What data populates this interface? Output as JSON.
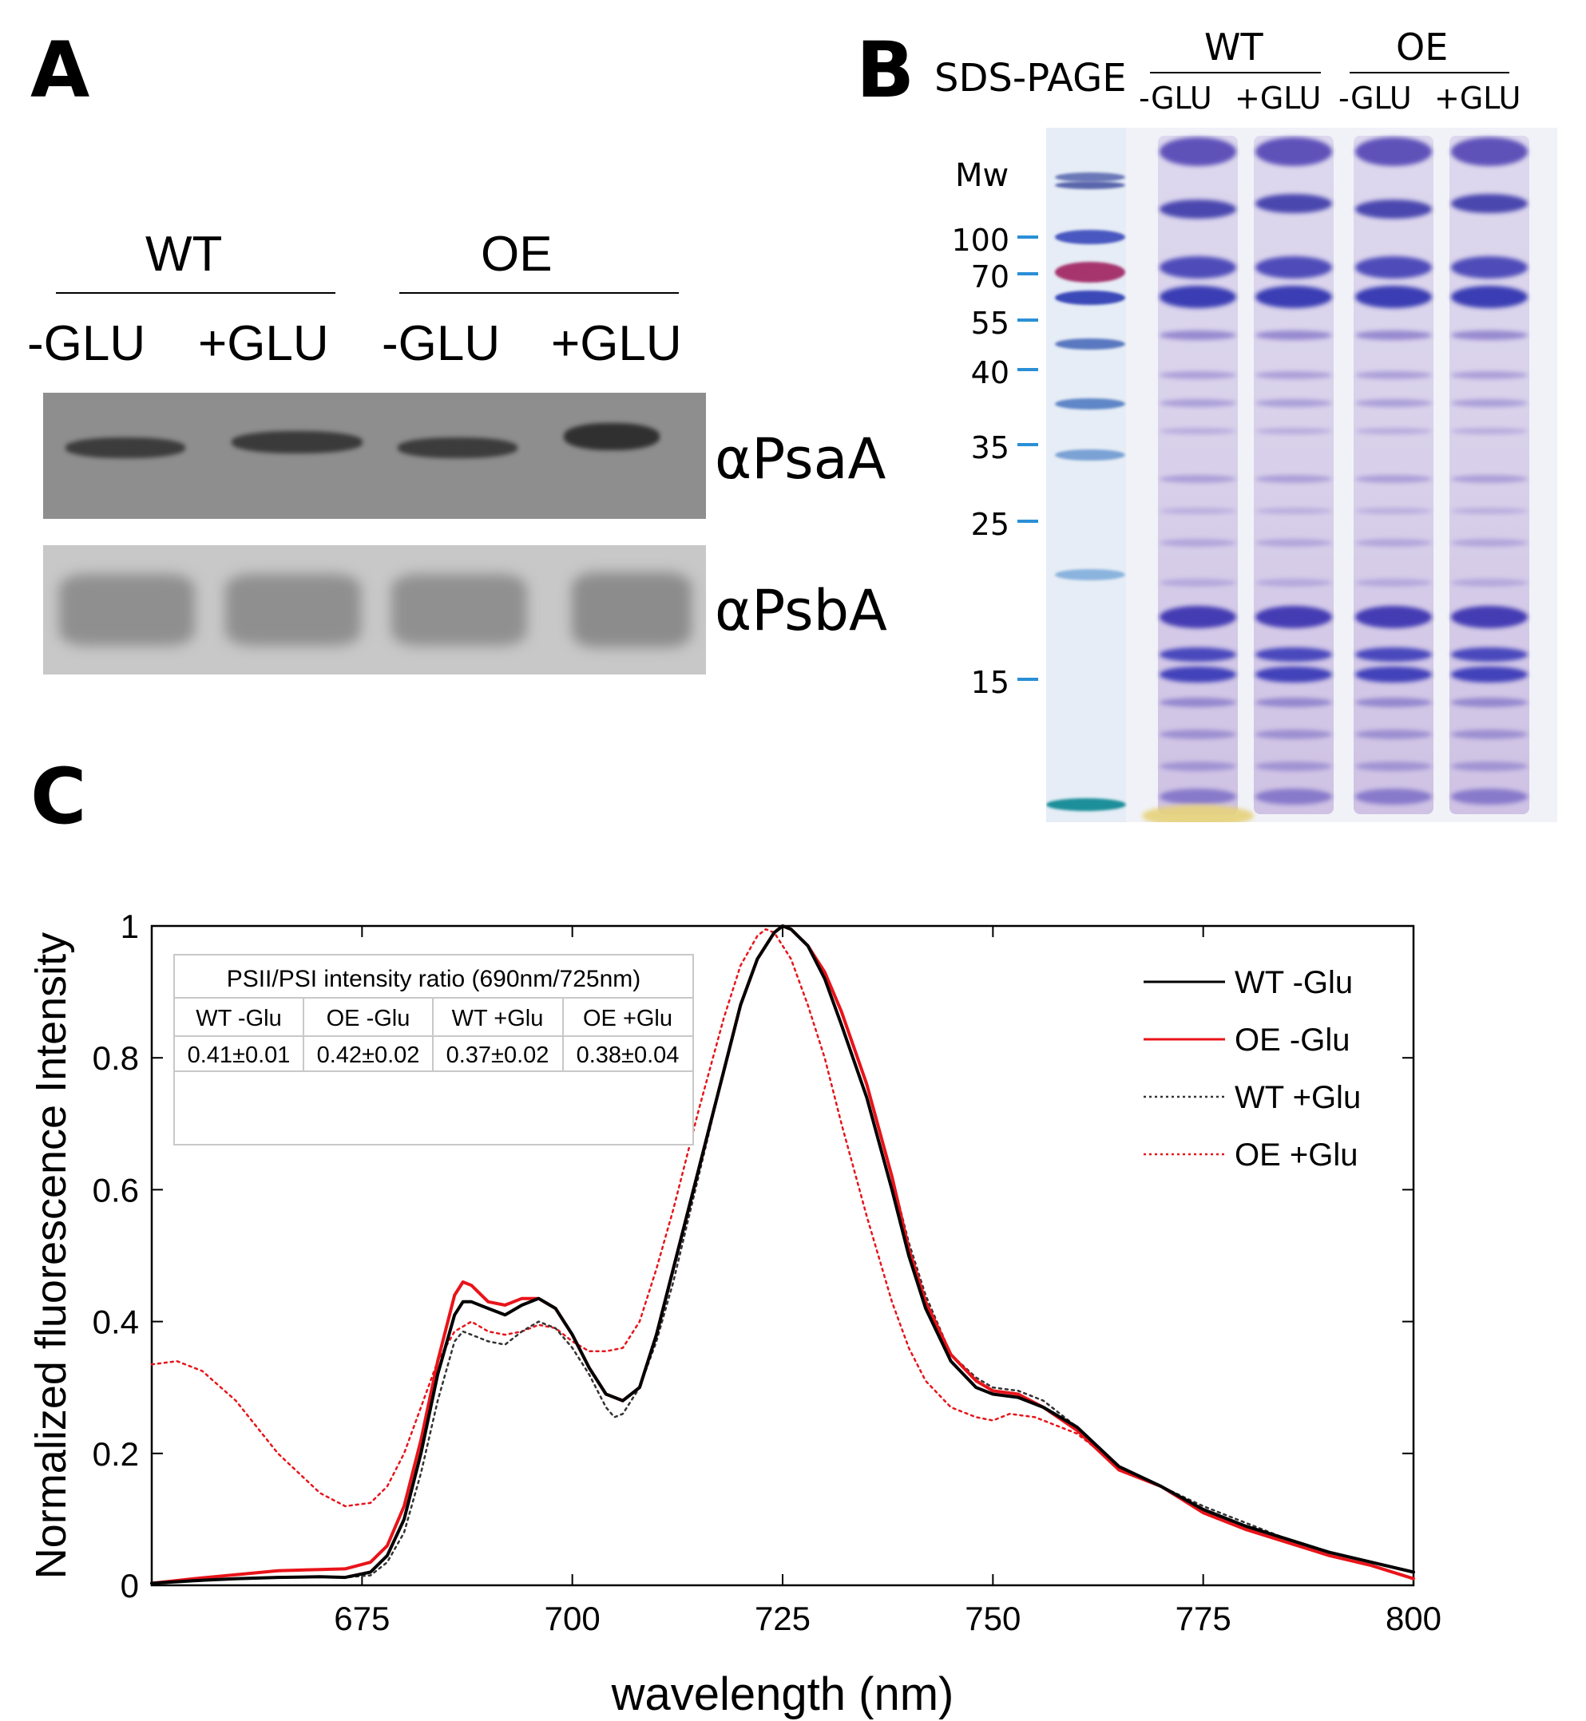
{
  "panel_a": {
    "label": "A",
    "groups": [
      {
        "name": "WT"
      },
      {
        "name": "OE"
      }
    ],
    "lanes": [
      "-GLU",
      "+GLU",
      "-GLU",
      "+GLU"
    ],
    "blots": [
      {
        "antibody": "αPsaA"
      },
      {
        "antibody": "αPsbA"
      }
    ]
  },
  "panel_b": {
    "label": "B",
    "title": "SDS-PAGE",
    "groups": [
      {
        "name": "WT"
      },
      {
        "name": "OE"
      }
    ],
    "lanes": [
      "-GLU",
      "+GLU",
      "-GLU",
      "+GLU"
    ],
    "mw_header": "Mw",
    "markers": [
      "100",
      "70",
      "55",
      "40",
      "35",
      "25",
      "15"
    ],
    "colors": {
      "tick": "#2a8fd6",
      "stain": "#4a3bb0"
    }
  },
  "panel_c": {
    "label": "C",
    "table": {
      "title": "PSII/PSI intensity ratio (690nm/725nm)",
      "headers": [
        "WT -Glu",
        "OE -Glu",
        "WT +Glu",
        "OE +Glu"
      ],
      "values": [
        "0.41±0.01",
        "0.42±0.02",
        "0.37±0.02",
        "0.38±0.04"
      ]
    }
  },
  "chart_data": {
    "type": "line",
    "xlabel": "wavelength (nm)",
    "ylabel": "Normalized fluorescence Intensity",
    "xlim": [
      650,
      800
    ],
    "ylim": [
      0,
      1
    ],
    "xticks": [
      675,
      700,
      725,
      750,
      775,
      800
    ],
    "yticks": [
      0,
      0.2,
      0.4,
      0.6,
      0.8,
      1
    ],
    "ytick_labels": [
      "0",
      "0.2",
      "0.4",
      "0.6",
      "0.8",
      "1"
    ],
    "legend_position": "top-right",
    "series": [
      {
        "name": "WT -Glu",
        "color": "#000000",
        "style": "solid",
        "points": [
          [
            650,
            0.003
          ],
          [
            655,
            0.007
          ],
          [
            660,
            0.01
          ],
          [
            665,
            0.012
          ],
          [
            670,
            0.013
          ],
          [
            673,
            0.012
          ],
          [
            676,
            0.02
          ],
          [
            678,
            0.045
          ],
          [
            680,
            0.1
          ],
          [
            682,
            0.2
          ],
          [
            684,
            0.32
          ],
          [
            686,
            0.41
          ],
          [
            687,
            0.43
          ],
          [
            688,
            0.43
          ],
          [
            690,
            0.42
          ],
          [
            692,
            0.41
          ],
          [
            694,
            0.425
          ],
          [
            696,
            0.435
          ],
          [
            698,
            0.42
          ],
          [
            700,
            0.38
          ],
          [
            702,
            0.33
          ],
          [
            704,
            0.29
          ],
          [
            706,
            0.28
          ],
          [
            708,
            0.3
          ],
          [
            710,
            0.38
          ],
          [
            712,
            0.48
          ],
          [
            715,
            0.63
          ],
          [
            718,
            0.78
          ],
          [
            720,
            0.88
          ],
          [
            722,
            0.95
          ],
          [
            724,
            0.99
          ],
          [
            725,
            1.0
          ],
          [
            726,
            0.995
          ],
          [
            728,
            0.97
          ],
          [
            730,
            0.92
          ],
          [
            732,
            0.85
          ],
          [
            735,
            0.74
          ],
          [
            738,
            0.6
          ],
          [
            740,
            0.5
          ],
          [
            742,
            0.42
          ],
          [
            745,
            0.34
          ],
          [
            748,
            0.3
          ],
          [
            750,
            0.29
          ],
          [
            753,
            0.285
          ],
          [
            756,
            0.27
          ],
          [
            760,
            0.24
          ],
          [
            765,
            0.18
          ],
          [
            770,
            0.15
          ],
          [
            775,
            0.115
          ],
          [
            780,
            0.09
          ],
          [
            785,
            0.07
          ],
          [
            790,
            0.05
          ],
          [
            795,
            0.035
          ],
          [
            800,
            0.02
          ]
        ]
      },
      {
        "name": "OE -Glu",
        "color": "#e8141a",
        "style": "solid",
        "points": [
          [
            650,
            0.003
          ],
          [
            655,
            0.01
          ],
          [
            660,
            0.016
          ],
          [
            665,
            0.022
          ],
          [
            670,
            0.024
          ],
          [
            673,
            0.025
          ],
          [
            676,
            0.035
          ],
          [
            678,
            0.06
          ],
          [
            680,
            0.12
          ],
          [
            682,
            0.22
          ],
          [
            684,
            0.34
          ],
          [
            686,
            0.44
          ],
          [
            687,
            0.46
          ],
          [
            688,
            0.455
          ],
          [
            690,
            0.43
          ],
          [
            692,
            0.425
          ],
          [
            694,
            0.435
          ],
          [
            696,
            0.435
          ],
          [
            698,
            0.42
          ],
          [
            700,
            0.38
          ],
          [
            702,
            0.33
          ],
          [
            704,
            0.29
          ],
          [
            706,
            0.28
          ],
          [
            708,
            0.3
          ],
          [
            710,
            0.38
          ],
          [
            712,
            0.48
          ],
          [
            715,
            0.63
          ],
          [
            718,
            0.78
          ],
          [
            720,
            0.88
          ],
          [
            722,
            0.95
          ],
          [
            724,
            0.99
          ],
          [
            725,
            1.0
          ],
          [
            726,
            0.995
          ],
          [
            728,
            0.97
          ],
          [
            730,
            0.93
          ],
          [
            732,
            0.87
          ],
          [
            735,
            0.76
          ],
          [
            738,
            0.62
          ],
          [
            740,
            0.51
          ],
          [
            742,
            0.43
          ],
          [
            745,
            0.35
          ],
          [
            748,
            0.31
          ],
          [
            750,
            0.295
          ],
          [
            753,
            0.29
          ],
          [
            756,
            0.27
          ],
          [
            760,
            0.235
          ],
          [
            765,
            0.175
          ],
          [
            770,
            0.15
          ],
          [
            775,
            0.11
          ],
          [
            780,
            0.085
          ],
          [
            785,
            0.065
          ],
          [
            790,
            0.045
          ],
          [
            795,
            0.03
          ],
          [
            800,
            0.01
          ]
        ]
      },
      {
        "name": "WT +Glu",
        "color": "#333333",
        "style": "dotted",
        "points": [
          [
            650,
            0.003
          ],
          [
            655,
            0.007
          ],
          [
            660,
            0.01
          ],
          [
            665,
            0.012
          ],
          [
            670,
            0.013
          ],
          [
            673,
            0.012
          ],
          [
            676,
            0.015
          ],
          [
            678,
            0.035
          ],
          [
            680,
            0.08
          ],
          [
            682,
            0.17
          ],
          [
            684,
            0.28
          ],
          [
            686,
            0.37
          ],
          [
            687,
            0.385
          ],
          [
            688,
            0.38
          ],
          [
            690,
            0.37
          ],
          [
            692,
            0.365
          ],
          [
            694,
            0.385
          ],
          [
            696,
            0.4
          ],
          [
            698,
            0.39
          ],
          [
            700,
            0.36
          ],
          [
            702,
            0.32
          ],
          [
            704,
            0.27
          ],
          [
            705,
            0.255
          ],
          [
            706,
            0.26
          ],
          [
            708,
            0.3
          ],
          [
            710,
            0.37
          ],
          [
            712,
            0.46
          ],
          [
            715,
            0.62
          ],
          [
            718,
            0.78
          ],
          [
            720,
            0.88
          ],
          [
            722,
            0.95
          ],
          [
            724,
            0.99
          ],
          [
            725,
            1.0
          ],
          [
            726,
            0.995
          ],
          [
            728,
            0.97
          ],
          [
            730,
            0.93
          ],
          [
            732,
            0.87
          ],
          [
            735,
            0.76
          ],
          [
            738,
            0.62
          ],
          [
            740,
            0.52
          ],
          [
            742,
            0.44
          ],
          [
            745,
            0.35
          ],
          [
            748,
            0.315
          ],
          [
            750,
            0.3
          ],
          [
            753,
            0.295
          ],
          [
            756,
            0.28
          ],
          [
            760,
            0.24
          ],
          [
            765,
            0.18
          ],
          [
            770,
            0.15
          ],
          [
            775,
            0.12
          ],
          [
            780,
            0.095
          ],
          [
            785,
            0.07
          ],
          [
            790,
            0.05
          ],
          [
            795,
            0.035
          ],
          [
            800,
            0.02
          ]
        ]
      },
      {
        "name": "OE +Glu",
        "color": "#e8141a",
        "style": "dotted",
        "points": [
          [
            650,
            0.335
          ],
          [
            653,
            0.34
          ],
          [
            656,
            0.325
          ],
          [
            660,
            0.28
          ],
          [
            665,
            0.2
          ],
          [
            670,
            0.14
          ],
          [
            673,
            0.12
          ],
          [
            676,
            0.125
          ],
          [
            678,
            0.15
          ],
          [
            680,
            0.2
          ],
          [
            682,
            0.27
          ],
          [
            684,
            0.34
          ],
          [
            686,
            0.385
          ],
          [
            688,
            0.4
          ],
          [
            690,
            0.385
          ],
          [
            692,
            0.38
          ],
          [
            694,
            0.385
          ],
          [
            696,
            0.395
          ],
          [
            698,
            0.39
          ],
          [
            700,
            0.37
          ],
          [
            702,
            0.355
          ],
          [
            704,
            0.355
          ],
          [
            706,
            0.36
          ],
          [
            708,
            0.4
          ],
          [
            710,
            0.48
          ],
          [
            712,
            0.57
          ],
          [
            715,
            0.72
          ],
          [
            718,
            0.86
          ],
          [
            720,
            0.94
          ],
          [
            722,
            0.985
          ],
          [
            723,
            0.995
          ],
          [
            724,
            0.99
          ],
          [
            726,
            0.95
          ],
          [
            728,
            0.88
          ],
          [
            730,
            0.8
          ],
          [
            732,
            0.7
          ],
          [
            735,
            0.56
          ],
          [
            738,
            0.43
          ],
          [
            740,
            0.36
          ],
          [
            742,
            0.31
          ],
          [
            745,
            0.27
          ],
          [
            748,
            0.255
          ],
          [
            750,
            0.25
          ],
          [
            752,
            0.26
          ],
          [
            755,
            0.255
          ],
          [
            760,
            0.23
          ],
          [
            765,
            0.18
          ],
          [
            770,
            0.15
          ],
          [
            775,
            0.11
          ],
          [
            780,
            0.085
          ],
          [
            785,
            0.065
          ],
          [
            790,
            0.045
          ],
          [
            795,
            0.03
          ],
          [
            800,
            0.01
          ]
        ]
      }
    ]
  }
}
